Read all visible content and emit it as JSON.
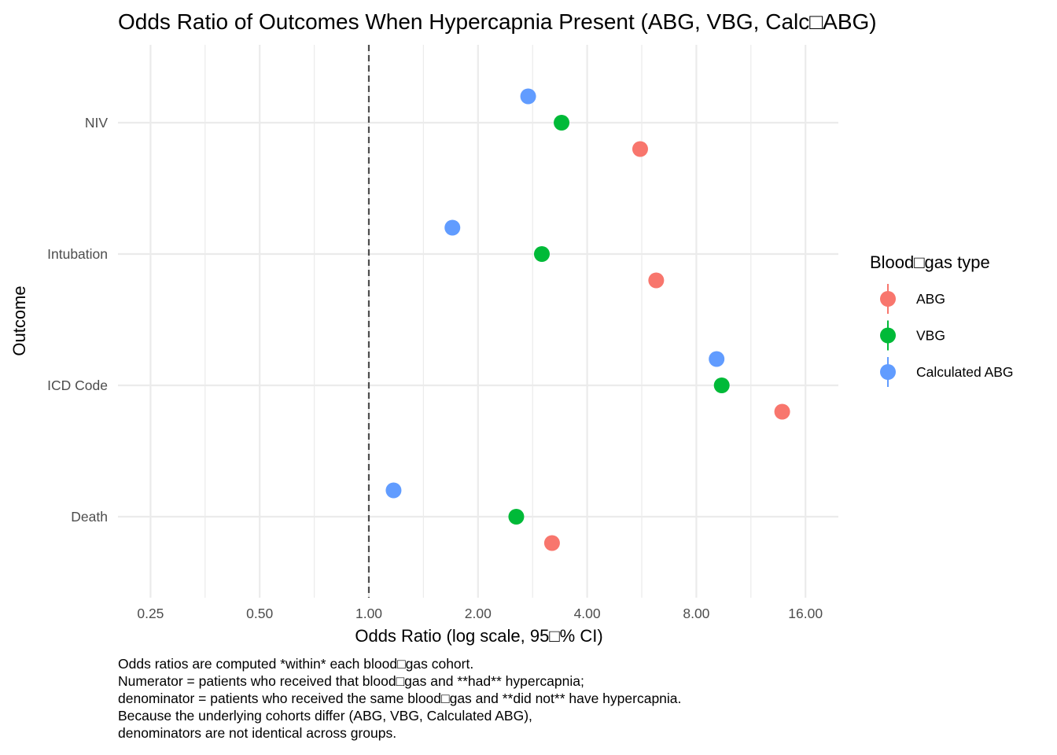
{
  "chart_data": {
    "type": "scatter",
    "title": "Odds Ratio of Outcomes When Hypercapnia Present (ABG, VBG, Calc□ABG)",
    "xlabel": "Odds Ratio (log scale, 95□% CI)",
    "ylabel": "Outcome",
    "x_scale": "log2",
    "xlim": [
      0.2,
      21
    ],
    "x_ticks": [
      0.25,
      0.5,
      1,
      2,
      4,
      8,
      16
    ],
    "x_tick_labels": [
      "0.25",
      "0.50",
      "1.00",
      "2.00",
      "4.00",
      "8.00",
      "16.00"
    ],
    "reference_line": 1,
    "categories": [
      "NIV",
      "Intubation",
      "ICD Code",
      "Death"
    ],
    "series": [
      {
        "name": "ABG",
        "color": "#F8766D",
        "values": [
          5.6,
          6.2,
          13.8,
          3.2
        ]
      },
      {
        "name": "VBG",
        "color": "#00BA38",
        "values": [
          3.4,
          3.0,
          9.4,
          2.55
        ]
      },
      {
        "name": "Calculated ABG",
        "color": "#619CFF",
        "values": [
          2.75,
          1.7,
          9.1,
          1.17
        ]
      }
    ],
    "legend": {
      "title": "Blood□gas type",
      "position": "right"
    },
    "grid": true,
    "caption": [
      "Odds ratios are computed *within* each blood□gas cohort.",
      "Numerator = patients who received that blood□gas and **had** hypercapnia;",
      "denominator = patients who received the same blood□gas and **did not** have hypercapnia.",
      "Because the underlying cohorts differ (ABG, VBG, Calculated ABG),",
      "denominators are not identical across groups."
    ]
  }
}
